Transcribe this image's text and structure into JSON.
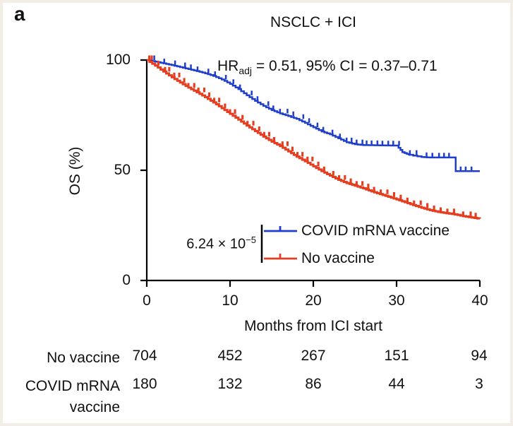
{
  "panel_label": "a",
  "chart_data": {
    "type": "line",
    "subtype": "kaplan-meier-survival",
    "title": "NSCLC + ICI",
    "xlabel": "Months from ICI start",
    "ylabel": "OS (%)",
    "xlim": [
      0,
      40
    ],
    "ylim": [
      0,
      100
    ],
    "x_ticks": [
      0,
      10,
      20,
      30,
      40
    ],
    "y_ticks": [
      100,
      50,
      0
    ],
    "grid": false,
    "legend_position": "inside-lower-middle",
    "axis_color": "#000000",
    "annotations": {
      "hr_prefix": "HR",
      "hr_sub": "adj",
      "hr_rest": " = 0.51, 95% CI = 0.37–0.71",
      "pvalue_base": "6.24 × 10",
      "pvalue_exp": "−5"
    },
    "series": [
      {
        "name": "COVID mRNA vaccine",
        "color": "#1f3ec9",
        "x": [
          0,
          1,
          2,
          3,
          4,
          5,
          6,
          7,
          8,
          9,
          10,
          11,
          12,
          13,
          14,
          15,
          16,
          17,
          18,
          19,
          20,
          21,
          22,
          23,
          24,
          25,
          26,
          28,
          30,
          30.7,
          31.5,
          33,
          34,
          37.1,
          40
        ],
        "y": [
          100,
          99.3,
          98.5,
          97.7,
          96.8,
          95.9,
          95,
          94,
          92.8,
          91.2,
          89.2,
          86.8,
          84,
          81.5,
          79.2,
          77.3,
          75.8,
          74.6,
          73.3,
          71.5,
          69.5,
          67.6,
          66.3,
          64.5,
          62.7,
          61.8,
          61.4,
          61.3,
          61.2,
          58.2,
          57,
          56,
          55.8,
          49.6,
          49.6
        ],
        "censor_x": [
          0.9,
          2.1,
          3.4,
          4.6,
          5.3,
          6.1,
          7.4,
          8.2,
          9.5,
          10.4,
          11.2,
          12.6,
          13.3,
          14.6,
          15.2,
          16,
          16.9,
          17.6,
          18.8,
          19.5,
          20.5,
          21.2,
          22.3,
          23.2,
          24,
          24.6,
          25.2,
          25.9,
          26.4,
          27,
          27.7,
          28.3,
          29,
          29.6,
          30.3,
          31.6,
          32.4,
          33.6,
          34.3,
          35.1,
          35.7,
          36.3,
          37.7,
          38.3,
          39
        ]
      },
      {
        "name": "No vaccine",
        "color": "#e43d20",
        "x": [
          0,
          1,
          2,
          3,
          4,
          5,
          6,
          7,
          8,
          9,
          10,
          11,
          12,
          13,
          14,
          15,
          16,
          17,
          18,
          19,
          20,
          21,
          22,
          23,
          24,
          25,
          26,
          27,
          28,
          29,
          30,
          31,
          32,
          33,
          34,
          35,
          36,
          37,
          38,
          39,
          40
        ],
        "y": [
          100,
          97.5,
          94.8,
          92.2,
          89.8,
          87.5,
          85.4,
          83.2,
          80.8,
          78.2,
          75.6,
          73,
          70.3,
          67.8,
          65.3,
          63,
          61,
          58.6,
          56.2,
          54.1,
          51.8,
          49.6,
          47.6,
          45.7,
          44.2,
          43,
          41.8,
          40.4,
          39.2,
          38,
          36.8,
          35.5,
          34.2,
          33,
          31.9,
          31.1,
          30.5,
          30,
          29.2,
          28.6,
          28
        ],
        "censor_x": [
          0.3,
          0.6,
          1.4,
          2.2,
          2.7,
          3.3,
          3.9,
          4.5,
          5,
          5.7,
          6.2,
          6.9,
          7.5,
          8.1,
          8.7,
          9.4,
          10,
          10.6,
          11.5,
          12.1,
          12.8,
          13.5,
          14.1,
          14.7,
          15.3,
          16.3,
          16.9,
          17.5,
          18.1,
          18.7,
          19.3,
          19.9,
          20.6,
          21.3,
          22.4,
          23.1,
          23.8,
          24.5,
          25.2,
          25.9,
          26.6,
          27.3,
          28.1,
          28.9,
          29.7,
          30.5,
          31.3,
          32.1,
          32.9,
          33.7,
          34.5,
          35.3,
          36.1,
          36.9,
          38,
          38.9,
          39.5
        ]
      }
    ]
  },
  "risk_table": {
    "rows": [
      {
        "label": "No vaccine",
        "counts": [
          "704",
          "452",
          "267",
          "151",
          "94"
        ]
      },
      {
        "label": "COVID mRNA vaccine",
        "counts": [
          "180",
          "132",
          "86",
          "44",
          "3"
        ]
      }
    ]
  }
}
